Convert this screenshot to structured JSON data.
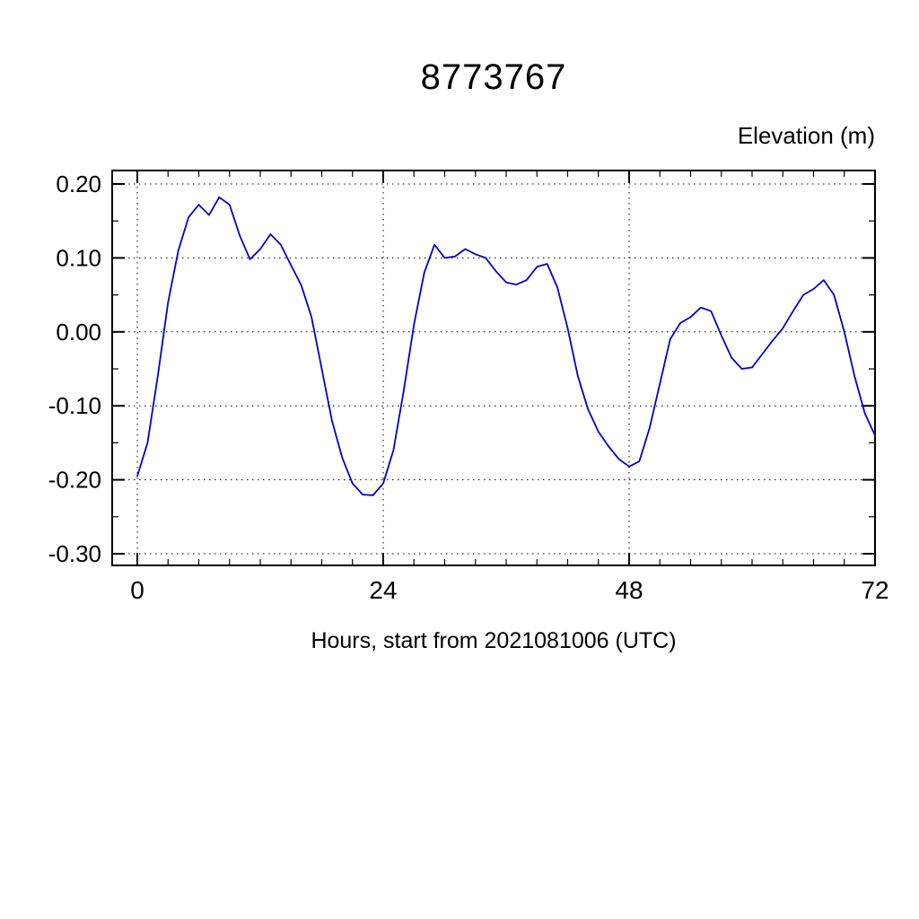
{
  "chart_data": {
    "type": "line",
    "title": "8773767",
    "ylabel": "Elevation (m)",
    "xlabel": "Hours, start from 2021081006 (UTC)",
    "xlim": [
      0,
      72
    ],
    "ylim": [
      -0.3,
      0.2
    ],
    "xticks": [
      0,
      24,
      48,
      72
    ],
    "yticks": [
      -0.3,
      -0.2,
      -0.1,
      0.0,
      0.1,
      0.2
    ],
    "x_minor_step": 3,
    "y_minor_step": 0.05,
    "grid": true,
    "legend": "none",
    "line_color": "#0000CC",
    "series": [
      {
        "name": "elevation",
        "x": [
          0,
          1,
          2,
          3,
          4,
          5,
          6,
          7,
          8,
          9,
          10,
          11,
          12,
          13,
          14,
          15,
          16,
          17,
          18,
          19,
          20,
          21,
          22,
          23,
          24,
          25,
          26,
          27,
          28,
          29,
          30,
          31,
          32,
          33,
          34,
          35,
          36,
          37,
          38,
          39,
          40,
          41,
          42,
          43,
          44,
          45,
          46,
          47,
          48,
          49,
          50,
          51,
          52,
          53,
          54,
          55,
          56,
          57,
          58,
          59,
          60,
          61,
          62,
          63,
          64,
          65,
          66,
          67,
          68,
          69,
          70,
          71,
          72
        ],
        "y": [
          -0.195,
          -0.15,
          -0.06,
          0.04,
          0.11,
          0.155,
          0.172,
          0.158,
          0.182,
          0.172,
          0.13,
          0.098,
          0.112,
          0.132,
          0.118,
          0.09,
          0.063,
          0.02,
          -0.05,
          -0.12,
          -0.17,
          -0.205,
          -0.22,
          -0.221,
          -0.205,
          -0.16,
          -0.08,
          0.01,
          0.08,
          0.118,
          0.1,
          0.102,
          0.112,
          0.105,
          0.1,
          0.082,
          0.067,
          0.064,
          0.07,
          0.088,
          0.092,
          0.06,
          0.005,
          -0.06,
          -0.105,
          -0.135,
          -0.155,
          -0.172,
          -0.182,
          -0.175,
          -0.13,
          -0.07,
          -0.01,
          0.012,
          0.02,
          0.033,
          0.028,
          -0.005,
          -0.035,
          -0.05,
          -0.048,
          -0.03,
          -0.012,
          0.005,
          0.028,
          0.05,
          0.058,
          0.07,
          0.05,
          0.0,
          -0.06,
          -0.11,
          -0.14
        ]
      }
    ]
  }
}
